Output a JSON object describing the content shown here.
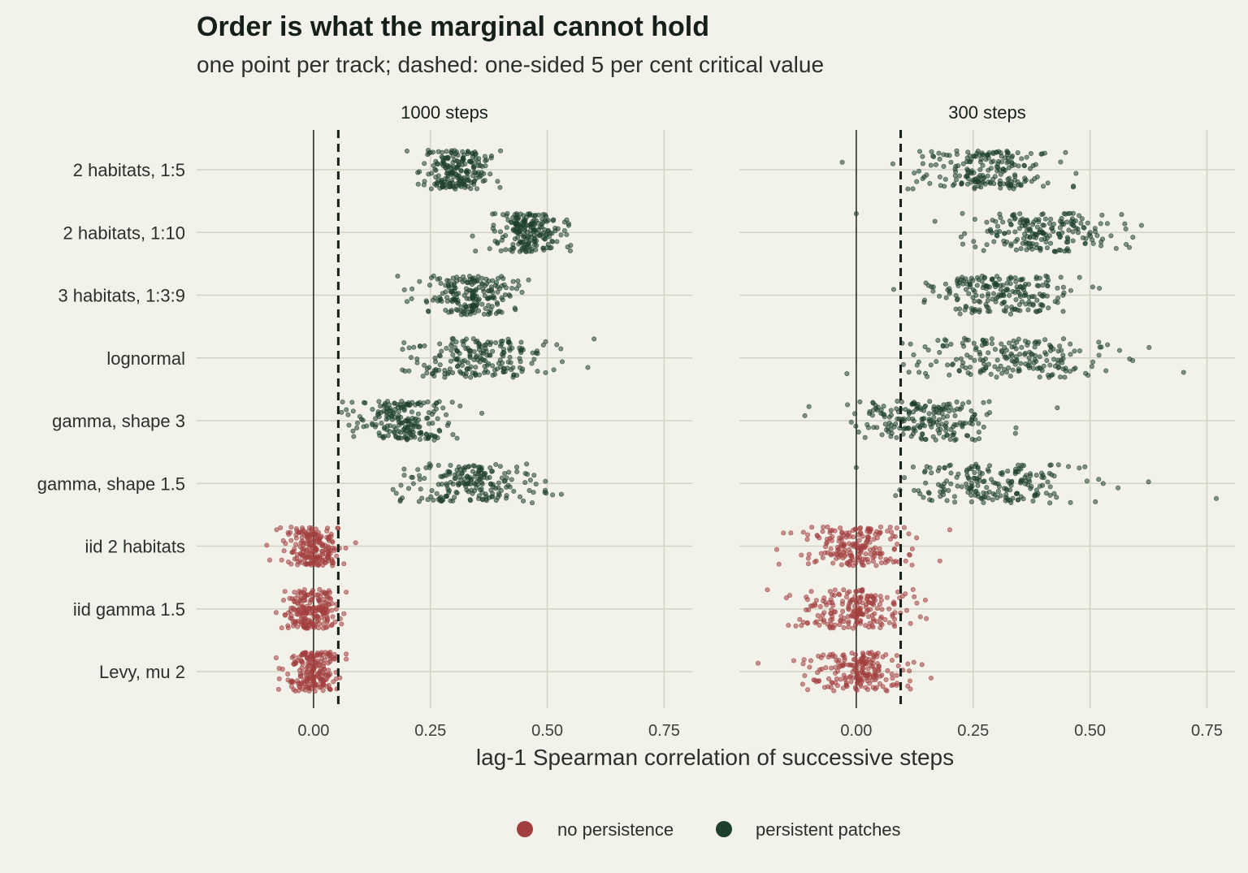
{
  "title": "Order is what the marginal cannot hold",
  "subtitle": "one point per track; dashed: one-sided 5 per cent critical value",
  "chart_data": {
    "type": "scatter",
    "xlabel": "lag-1 Spearman correlation of successive steps",
    "categories": [
      "2 habitats, 1:5",
      "2 habitats, 1:10",
      "3 habitats, 1:3:9",
      "lognormal",
      "gamma, shape 3",
      "gamma, shape 1.5",
      "iid 2 habitats",
      "iid gamma 1.5",
      "Levy, mu 2"
    ],
    "x_ticks": [
      "0.00",
      "0.25",
      "0.50",
      "0.75"
    ],
    "legend": [
      {
        "label": "no persistence",
        "color": "#a23e3e"
      },
      {
        "label": "persistent patches",
        "color": "#1e3f2c"
      }
    ],
    "grid": true,
    "legend_position": "bottom",
    "panels": [
      {
        "label": "1000 steps",
        "xlim": [
          -0.25,
          0.81
        ],
        "critical_value": 0.053,
        "series": [
          {
            "category": "2 habitats, 1:5",
            "group": "persistent patches",
            "center": 0.31,
            "sd": 0.04,
            "min": 0.2,
            "max": 0.4
          },
          {
            "category": "2 habitats, 1:10",
            "group": "persistent patches",
            "center": 0.46,
            "sd": 0.035,
            "min": 0.34,
            "max": 0.55
          },
          {
            "category": "3 habitats, 1:3:9",
            "group": "persistent patches",
            "center": 0.34,
            "sd": 0.045,
            "min": 0.18,
            "max": 0.46
          },
          {
            "category": "lognormal",
            "group": "persistent patches",
            "center": 0.36,
            "sd": 0.08,
            "min": 0.19,
            "max": 0.6
          },
          {
            "category": "gamma, shape 3",
            "group": "persistent patches",
            "center": 0.19,
            "sd": 0.05,
            "min": 0.06,
            "max": 0.36
          },
          {
            "category": "gamma, shape 1.5",
            "group": "persistent patches",
            "center": 0.34,
            "sd": 0.07,
            "min": 0.17,
            "max": 0.53
          },
          {
            "category": "iid 2 habitats",
            "group": "no persistence",
            "center": 0.0,
            "sd": 0.03,
            "min": -0.1,
            "max": 0.09
          },
          {
            "category": "iid gamma 1.5",
            "group": "no persistence",
            "center": 0.0,
            "sd": 0.03,
            "min": -0.08,
            "max": 0.07
          },
          {
            "category": "Levy, mu 2",
            "group": "no persistence",
            "center": 0.0,
            "sd": 0.03,
            "min": -0.08,
            "max": 0.07
          }
        ]
      },
      {
        "label": "300 steps",
        "xlim": [
          -0.25,
          0.81
        ],
        "critical_value": 0.095,
        "series": [
          {
            "category": "2 habitats, 1:5",
            "group": "persistent patches",
            "center": 0.28,
            "sd": 0.07,
            "min": -0.03,
            "max": 0.47
          },
          {
            "category": "2 habitats, 1:10",
            "group": "persistent patches",
            "center": 0.4,
            "sd": 0.08,
            "min": 0.0,
            "max": 0.61
          },
          {
            "category": "3 habitats, 1:3:9",
            "group": "persistent patches",
            "center": 0.3,
            "sd": 0.075,
            "min": 0.08,
            "max": 0.52
          },
          {
            "category": "lognormal",
            "group": "persistent patches",
            "center": 0.32,
            "sd": 0.11,
            "min": -0.02,
            "max": 0.7
          },
          {
            "category": "gamma, shape 3",
            "group": "persistent patches",
            "center": 0.15,
            "sd": 0.08,
            "min": -0.11,
            "max": 0.43
          },
          {
            "category": "gamma, shape 1.5",
            "group": "persistent patches",
            "center": 0.3,
            "sd": 0.1,
            "min": 0.0,
            "max": 0.77
          },
          {
            "category": "iid 2 habitats",
            "group": "no persistence",
            "center": 0.0,
            "sd": 0.055,
            "min": -0.17,
            "max": 0.2
          },
          {
            "category": "iid gamma 1.5",
            "group": "no persistence",
            "center": -0.01,
            "sd": 0.055,
            "min": -0.19,
            "max": 0.15
          },
          {
            "category": "Levy, mu 2",
            "group": "no persistence",
            "center": 0.0,
            "sd": 0.055,
            "min": -0.21,
            "max": 0.16
          }
        ]
      }
    ]
  }
}
